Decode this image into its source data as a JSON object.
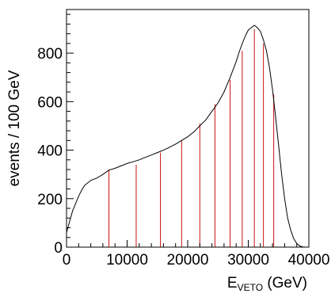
{
  "chart_data": {
    "type": "line",
    "title": "",
    "xlabel_main": "E",
    "xlabel_sub": "VETO",
    "xlabel_unit": " (GeV)",
    "ylabel": "events / 100 GeV",
    "xlim": [
      0,
      40000
    ],
    "ylim": [
      0,
      980
    ],
    "grid": false,
    "x_ticks": [
      0,
      10000,
      20000,
      30000,
      40000
    ],
    "x_tick_labels": [
      "0",
      "10000",
      "20000",
      "30000",
      "40000"
    ],
    "y_ticks": [
      0,
      200,
      400,
      600,
      800
    ],
    "y_tick_labels": [
      "0",
      "200",
      "400",
      "600",
      "800"
    ],
    "series": [
      {
        "color": "#000000",
        "x": [
          0,
          500,
          1000,
          1500,
          2000,
          2500,
          3000,
          3500,
          4000,
          5000,
          6000,
          7000,
          8000,
          9000,
          10000,
          11000,
          12000,
          13000,
          14000,
          15000,
          16000,
          17000,
          18000,
          19000,
          20000,
          21000,
          22000,
          23000,
          24000,
          25000,
          26000,
          27000,
          28000,
          28500,
          29000,
          29500,
          30000,
          30500,
          31000,
          31500,
          32000,
          32500,
          33000,
          33500,
          34000,
          34500,
          35000,
          35500,
          36000,
          36500,
          37000,
          37500,
          38000,
          38500,
          39000,
          39500
        ],
        "y": [
          60,
          105,
          150,
          180,
          210,
          235,
          255,
          265,
          275,
          285,
          300,
          318,
          325,
          335,
          345,
          352,
          360,
          370,
          380,
          390,
          400,
          412,
          425,
          440,
          455,
          475,
          500,
          525,
          560,
          595,
          640,
          700,
          765,
          805,
          840,
          870,
          895,
          905,
          915,
          905,
          890,
          855,
          810,
          740,
          650,
          540,
          420,
          300,
          200,
          120,
          70,
          35,
          15,
          5,
          1,
          0
        ]
      }
    ],
    "vertical_lines": {
      "color": "#cc1111",
      "x": [
        7000,
        11500,
        15500,
        19000,
        22000,
        24500,
        27000,
        29000,
        31000,
        32500,
        34200
      ],
      "heights": [
        320,
        340,
        390,
        440,
        510,
        590,
        690,
        810,
        900,
        840,
        630
      ]
    }
  }
}
